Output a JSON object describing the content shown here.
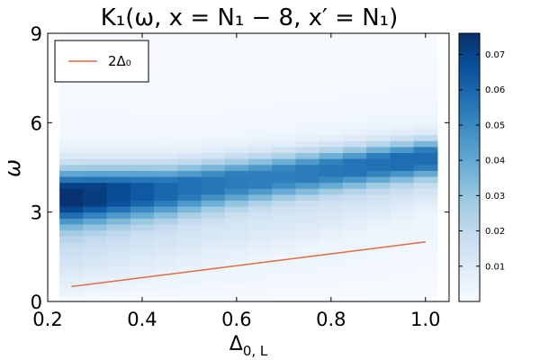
{
  "chart_data": {
    "type": "heatmap",
    "title": "K₁(ω, x = N₁ − 8, x′ = N₁)",
    "xlabel": "Δ0,L",
    "ylabel": "ω",
    "xlim": [
      0.2,
      1.05
    ],
    "ylim": [
      0,
      9
    ],
    "xticks": [
      {
        "value": 0.2,
        "label": "0.2"
      },
      {
        "value": 0.4,
        "label": "0.4"
      },
      {
        "value": 0.6,
        "label": "0.6"
      },
      {
        "value": 0.8,
        "label": "0.8"
      },
      {
        "value": 1.0,
        "label": "1.0"
      }
    ],
    "yticks": [
      {
        "value": 0,
        "label": "0"
      },
      {
        "value": 3,
        "label": "3"
      },
      {
        "value": 6,
        "label": "6"
      },
      {
        "value": 9,
        "label": "9"
      }
    ],
    "heatmap": {
      "x_centers": [
        0.25,
        0.3,
        0.35,
        0.4,
        0.45,
        0.5,
        0.55,
        0.6,
        0.65,
        0.7,
        0.75,
        0.8,
        0.85,
        0.9,
        0.95,
        1.0
      ],
      "y_range": [
        0,
        9
      ],
      "peak_omega": [
        3.5,
        3.55,
        3.6,
        3.65,
        3.7,
        3.8,
        3.9,
        4.0,
        4.1,
        4.2,
        4.3,
        4.4,
        4.5,
        4.6,
        4.7,
        4.8
      ],
      "peak_value": [
        0.075,
        0.072,
        0.068,
        0.064,
        0.06,
        0.057,
        0.055,
        0.054,
        0.053,
        0.053,
        0.054,
        0.055,
        0.056,
        0.057,
        0.058,
        0.058
      ],
      "peak_width": [
        0.9,
        0.88,
        0.86,
        0.84,
        0.82,
        0.8,
        0.78,
        0.76,
        0.74,
        0.72,
        0.7,
        0.68,
        0.66,
        0.64,
        0.62,
        0.6
      ],
      "onset_omega": [
        0.3,
        0.4,
        0.5,
        0.6,
        0.7,
        0.8,
        0.9,
        1.0,
        1.2,
        1.4,
        1.6,
        1.8,
        2.1,
        2.4,
        2.7,
        3.0
      ]
    },
    "colorbar": {
      "min": 0,
      "max": 0.076,
      "ticks": [
        {
          "value": 0.01,
          "label": "0.01"
        },
        {
          "value": 0.02,
          "label": "0.02"
        },
        {
          "value": 0.03,
          "label": "0.03"
        },
        {
          "value": 0.04,
          "label": "0.04"
        },
        {
          "value": 0.05,
          "label": "0.05"
        },
        {
          "value": 0.06,
          "label": "0.06"
        },
        {
          "value": 0.07,
          "label": "0.07"
        }
      ],
      "colormap": [
        "#f7fbff",
        "#deebf7",
        "#c6dbef",
        "#9ecae1",
        "#6baed6",
        "#4292c6",
        "#2171b5",
        "#08519c",
        "#08306b"
      ]
    },
    "series": [
      {
        "name": "2Δ₀",
        "color": "#e26a3f",
        "x": [
          0.25,
          1.0
        ],
        "y": [
          0.5,
          2.0
        ]
      }
    ],
    "legend_position": "top-left",
    "grid": false
  }
}
